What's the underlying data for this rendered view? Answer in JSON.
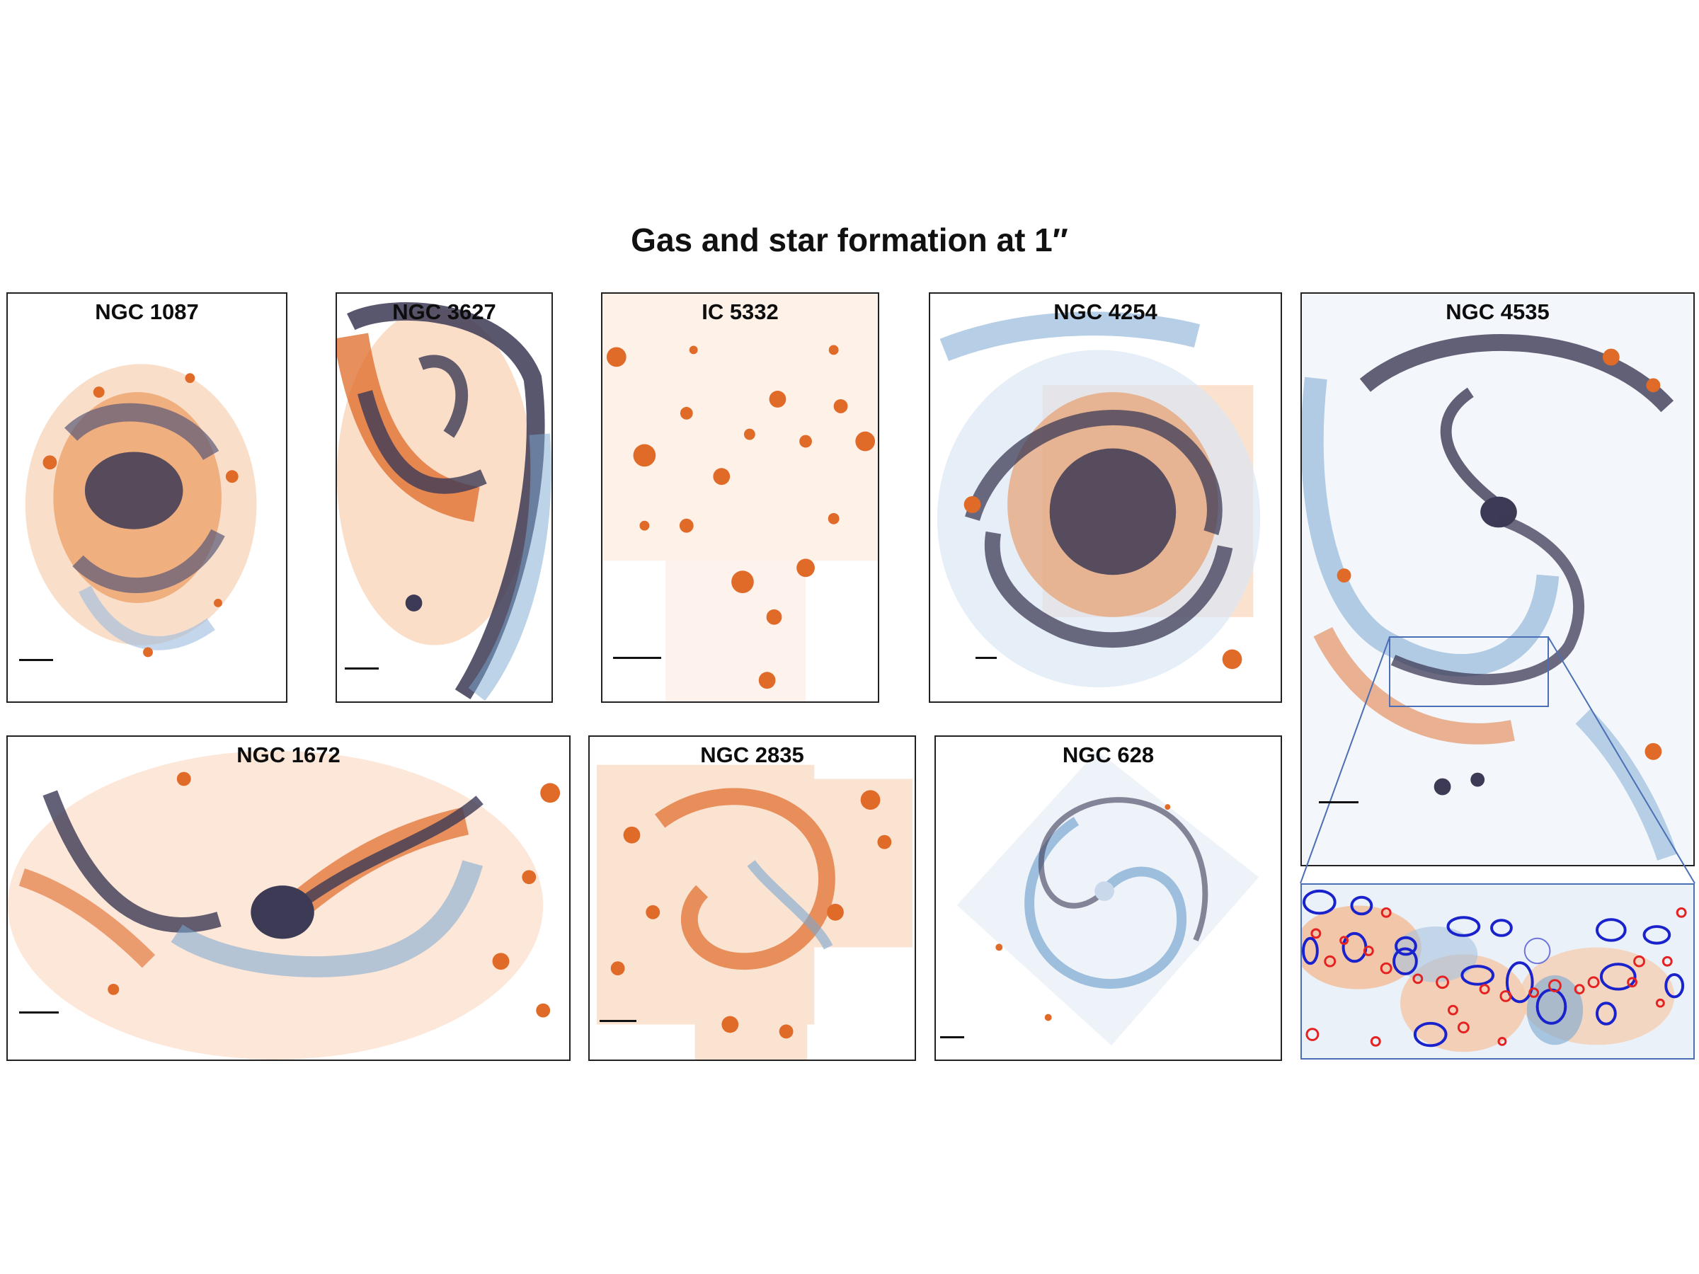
{
  "figure": {
    "title": "Gas and star formation at 1″"
  },
  "panels": [
    {
      "id": "ngc1087",
      "label": "NGC 1087"
    },
    {
      "id": "ngc3627",
      "label": "NGC 3627"
    },
    {
      "id": "ic5332",
      "label": "IC 5332"
    },
    {
      "id": "ngc4254",
      "label": "NGC 4254"
    },
    {
      "id": "ngc4535",
      "label": "NGC 4535"
    },
    {
      "id": "ngc1672",
      "label": "NGC 1672"
    },
    {
      "id": "ngc2835",
      "label": "NGC 2835"
    },
    {
      "id": "ngc628",
      "label": "NGC 628"
    }
  ],
  "colors": {
    "gas_blue": "#7aa7d1",
    "gas_dark": "#3c3a55",
    "star_orange": "#e06a28",
    "star_light": "#f6c7a2",
    "region_red": "#e52222",
    "cloud_blue": "#1a22cc",
    "zoom_box": "#4a6fb5"
  }
}
